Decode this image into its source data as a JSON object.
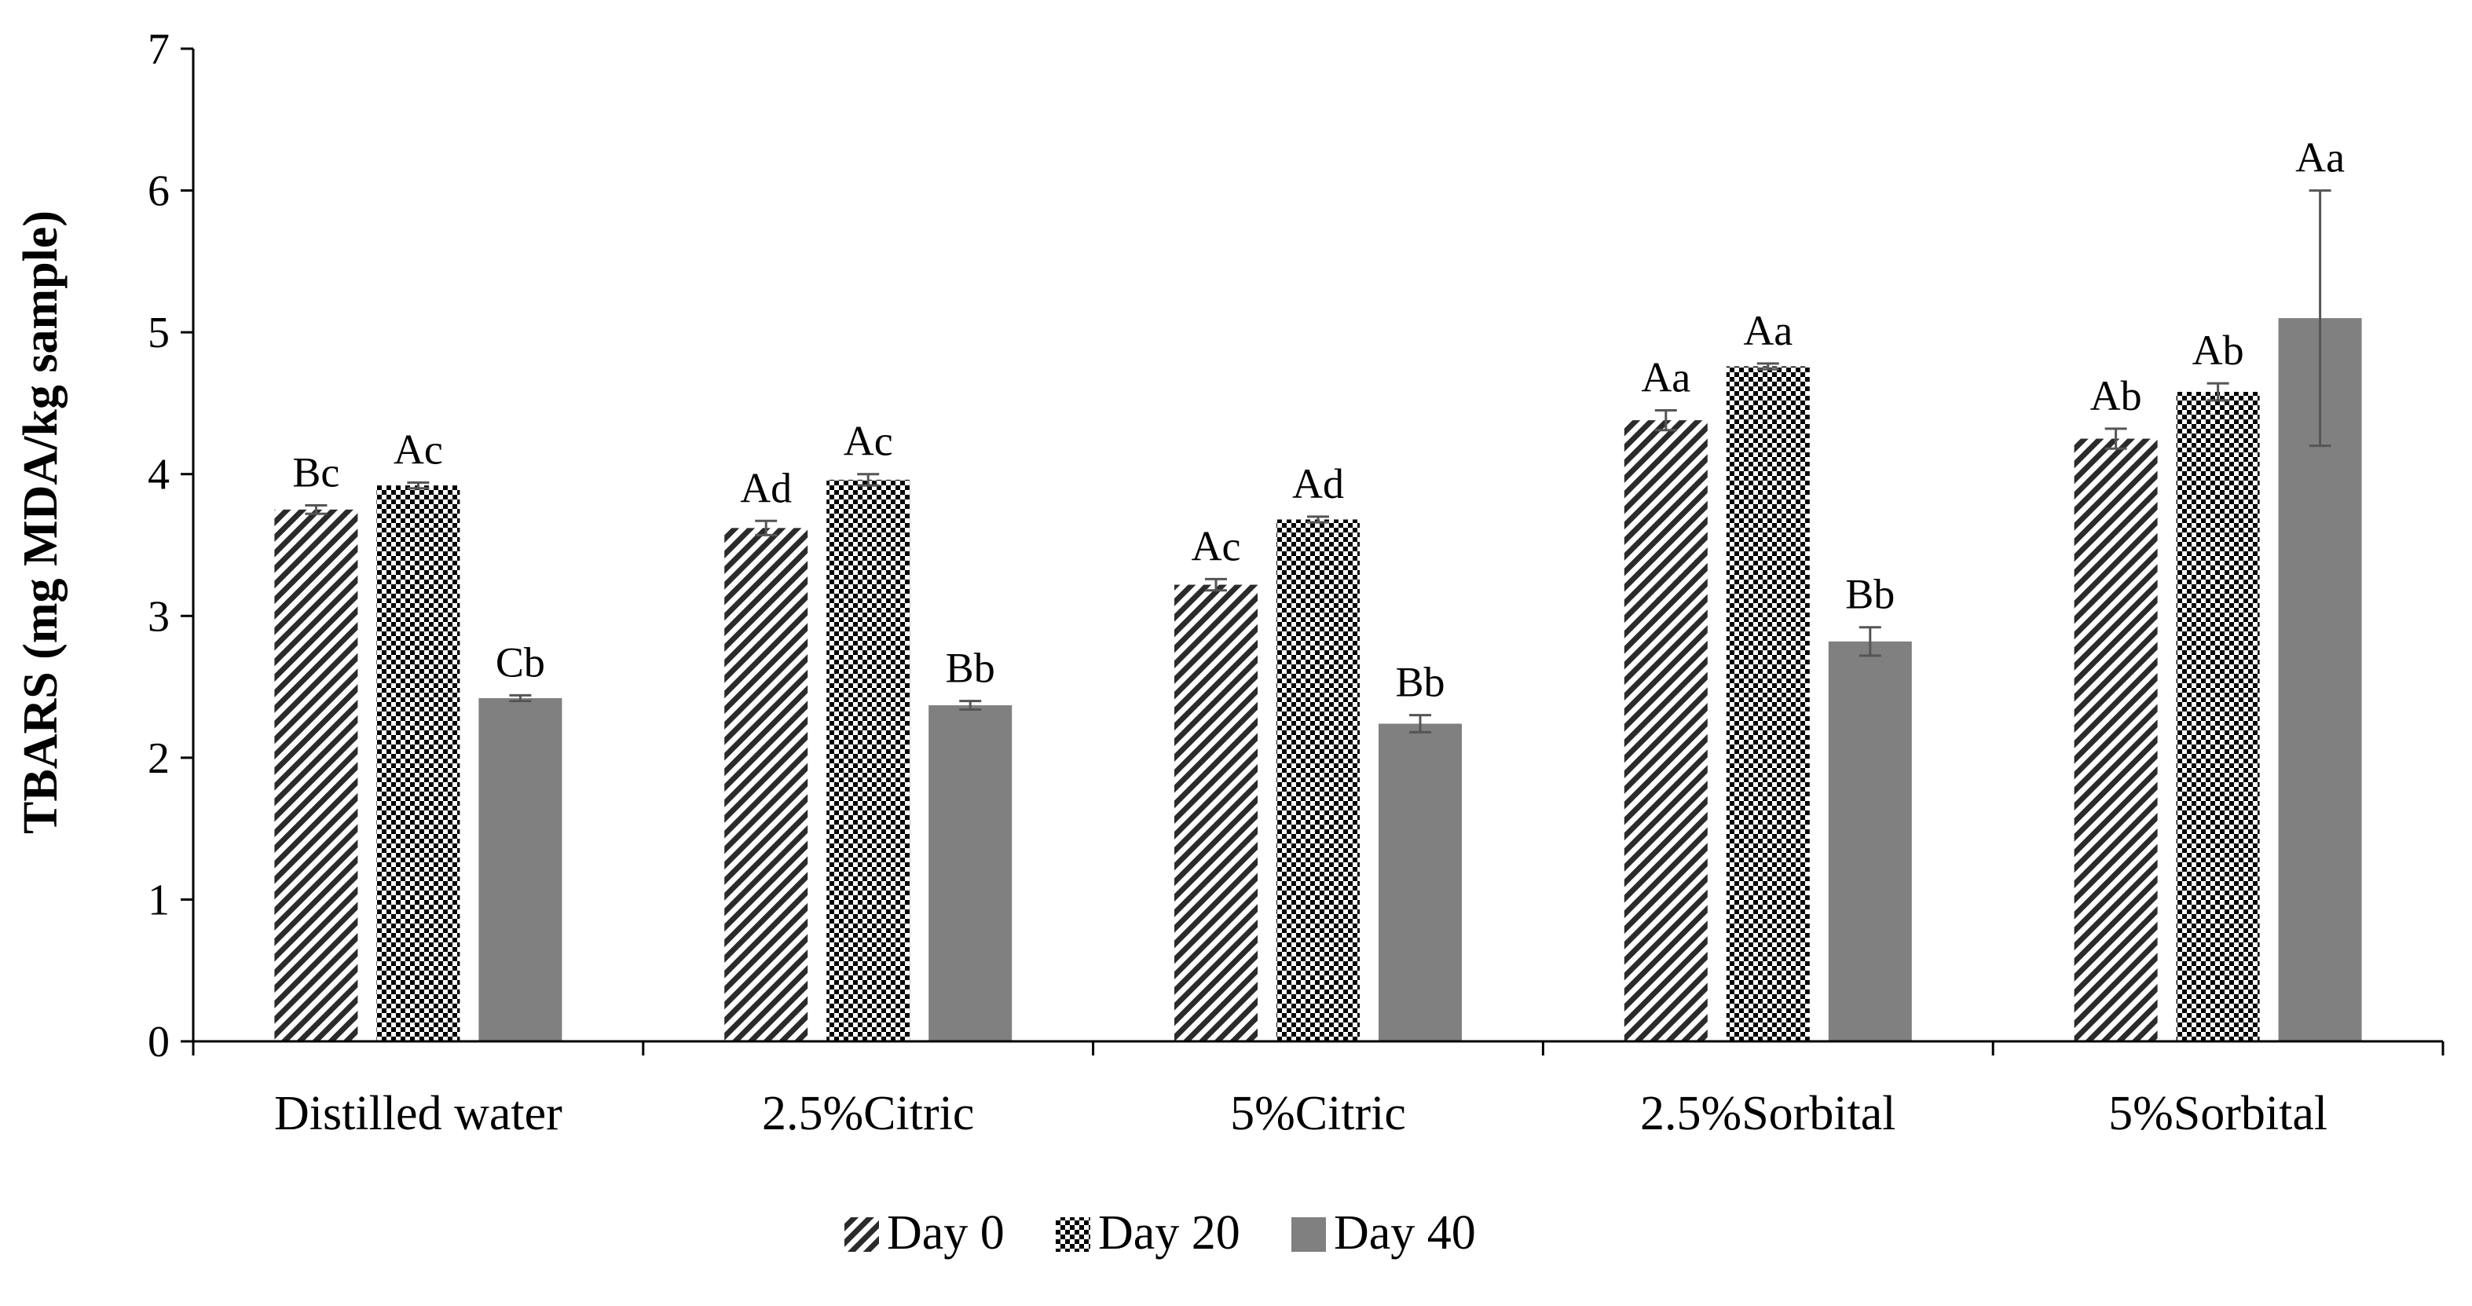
{
  "chart_data": {
    "type": "bar",
    "title": "",
    "xlabel": "",
    "ylabel": "TBARS (mg MDA/kg sample)",
    "ylim": [
      0,
      7
    ],
    "yticks": [
      "0",
      "1",
      "2",
      "3",
      "4",
      "5",
      "6",
      "7"
    ],
    "grid": false,
    "legend_position": "bottom",
    "categories": [
      "Distilled water",
      "2.5%Citric",
      "5%Citric",
      "2.5%Sorbital",
      "5%Sorbital"
    ],
    "series": [
      {
        "name": "Day 0",
        "pattern": "diagonal-hatch",
        "values": [
          3.75,
          3.62,
          3.22,
          4.38,
          4.25
        ],
        "errors": [
          0.03,
          0.05,
          0.04,
          0.07,
          0.07
        ],
        "labels": [
          "Bc",
          "Ad",
          "Ac",
          "Aa",
          "Ab"
        ]
      },
      {
        "name": "Day 20",
        "pattern": "checker",
        "values": [
          3.92,
          3.96,
          3.68,
          4.76,
          4.58
        ],
        "errors": [
          0.02,
          0.04,
          0.02,
          0.02,
          0.06
        ],
        "labels": [
          "Ac",
          "Ac",
          "Ad",
          "Aa",
          "Ab"
        ]
      },
      {
        "name": "Day 40",
        "pattern": "solid",
        "color": "#808080",
        "values": [
          2.42,
          2.37,
          2.24,
          2.82,
          5.1
        ],
        "errors": [
          0.02,
          0.03,
          0.06,
          0.1,
          0.9
        ],
        "labels": [
          "Cb",
          "Bb",
          "Bb",
          "Bb",
          "Aa"
        ]
      }
    ]
  }
}
